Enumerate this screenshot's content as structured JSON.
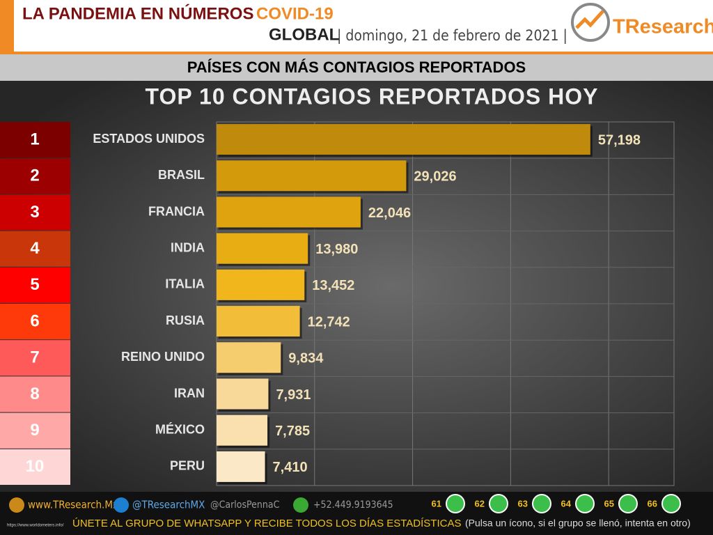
{
  "header": {
    "title": "LA PANDEMIA EN NÚMEROS",
    "title_highlight": "COVID-19",
    "scope": "GLOBAL",
    "date": "| domingo, 21 de febrero de 2021 |",
    "brand": "TResearch"
  },
  "banner": "PAÍSES CON MÁS CONTAGIOS REPORTADOS",
  "chart_data": {
    "type": "bar",
    "orientation": "horizontal",
    "title": "TOP 10 CONTAGIOS REPORTADOS HOY",
    "ranks": [
      "1",
      "2",
      "3",
      "4",
      "5",
      "6",
      "7",
      "8",
      "9",
      "10"
    ],
    "rank_colors": [
      "#7d0000",
      "#9c0000",
      "#cc0000",
      "#c8360a",
      "#ff0000",
      "#ff3a0a",
      "#ff5a5a",
      "#ff8a8a",
      "#ffa8a8",
      "#ffd6d6"
    ],
    "categories": [
      "ESTADOS UNIDOS",
      "BRASIL",
      "FRANCIA",
      "INDIA",
      "ITALIA",
      "RUSIA",
      "REINO UNIDO",
      "IRAN",
      "MÉXICO",
      "PERU"
    ],
    "values": [
      57198,
      29026,
      22046,
      13980,
      13452,
      12742,
      9834,
      7931,
      7785,
      7410
    ],
    "value_labels": [
      "57,198",
      "29,026",
      "22,046",
      "13,980",
      "13,452",
      "12,742",
      "9,834",
      "7,931",
      "7,785",
      "7,410"
    ],
    "colors": [
      "#c08a0c",
      "#d39a0c",
      "#dea30e",
      "#e8ad12",
      "#f0b61c",
      "#f2be3a",
      "#f5cc6e",
      "#f8d99a",
      "#f9e0ae",
      "#fbe8c6"
    ],
    "xlim": [
      0,
      70000
    ],
    "xticks": [
      0,
      15000,
      30000,
      45000,
      60000
    ],
    "grid": true
  },
  "footer": {
    "site": "www.TResearch.Mx",
    "twitter": "@TResearchMX",
    "personal": "@CarlosPennaC",
    "phone": "+52.449.9193645",
    "groups": [
      "61",
      "62",
      "63",
      "64",
      "65",
      "66"
    ],
    "cta": "ÚNETE AL GRUPO DE WHATSAPP Y RECIBE TODOS LOS DÍAS ESTADÍSTICAS",
    "cta_note": "(Pulsa un ícono, si el grupo se llenó, intenta en otro)",
    "source": "https://www.worldometers.info/"
  }
}
